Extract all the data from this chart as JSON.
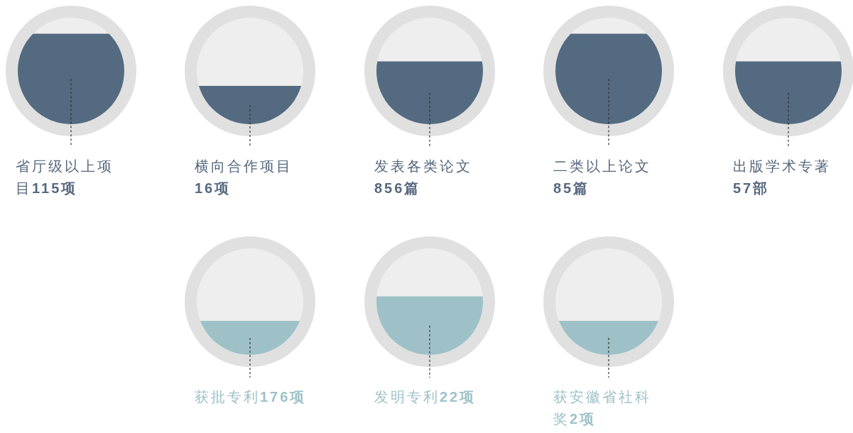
{
  "chart_data": {
    "type": "other",
    "categories": [
      "省厅级以上项目",
      "横向合作项目",
      "发表各类论文",
      "二类以上论文",
      "出版学术专著",
      "获批专利",
      "发明专利",
      "获安徽省社科奖"
    ],
    "values": [
      115,
      16,
      856,
      85,
      57,
      176,
      22,
      2
    ],
    "value_labels": [
      "115项",
      "16项",
      "856篇",
      "85篇",
      "57部",
      "176项",
      "22项",
      "2项"
    ],
    "colors": [
      "#536a80",
      "#536a80",
      "#536a80",
      "#536a80",
      "#536a80",
      "#9dc1c7",
      "#9dc1c7",
      "#9dc1c7"
    ]
  }
}
